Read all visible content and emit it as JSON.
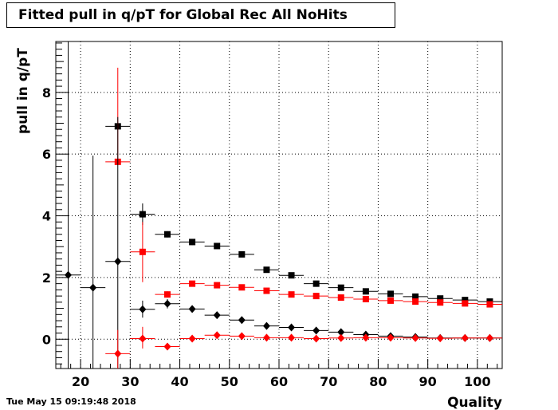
{
  "title": "Fitted pull in q/pT for Global Rec All NoHits",
  "timestamp": "Tue May 15 09:19:48 2018",
  "colors": {
    "black": "#000000",
    "red": "#ff0000"
  },
  "chart_data": {
    "type": "scatter",
    "title": "Fitted pull in q/pT for Global Rec All NoHits",
    "xlabel": "Quality",
    "ylabel": "pull in q/pT",
    "xlim": [
      15,
      105
    ],
    "ylim": [
      -0.95,
      9.65
    ],
    "xticks": [
      20,
      30,
      40,
      50,
      60,
      70,
      80,
      90,
      100
    ],
    "yticks": [
      0,
      2,
      4,
      6,
      8
    ],
    "grid": true,
    "legend": "none",
    "series": [
      {
        "color": "#000000",
        "marker": "square",
        "points": [
          {
            "x": 27.5,
            "y": 6.9,
            "ylo": 6.9,
            "yhi": 6.9
          },
          {
            "x": 32.5,
            "y": 4.05,
            "ylo": 3.7,
            "yhi": 4.4
          },
          {
            "x": 37.5,
            "y": 3.4,
            "ylo": 3.3,
            "yhi": 3.5
          },
          {
            "x": 42.5,
            "y": 3.15,
            "ylo": 3.05,
            "yhi": 3.25
          },
          {
            "x": 47.5,
            "y": 3.02,
            "ylo": 2.97,
            "yhi": 3.07
          },
          {
            "x": 52.5,
            "y": 2.75,
            "ylo": 2.72,
            "yhi": 2.78
          },
          {
            "x": 57.5,
            "y": 2.25,
            "ylo": 2.23,
            "yhi": 2.27
          },
          {
            "x": 62.5,
            "y": 2.07,
            "ylo": 2.05,
            "yhi": 2.09
          },
          {
            "x": 67.5,
            "y": 1.8,
            "ylo": 1.78,
            "yhi": 1.82
          },
          {
            "x": 72.5,
            "y": 1.67,
            "ylo": 1.65,
            "yhi": 1.69
          },
          {
            "x": 77.5,
            "y": 1.55,
            "ylo": 1.53,
            "yhi": 1.57
          },
          {
            "x": 82.5,
            "y": 1.47,
            "ylo": 1.45,
            "yhi": 1.49
          },
          {
            "x": 87.5,
            "y": 1.38,
            "ylo": 1.37,
            "yhi": 1.39
          },
          {
            "x": 92.5,
            "y": 1.32,
            "ylo": 1.31,
            "yhi": 1.33
          },
          {
            "x": 97.5,
            "y": 1.27,
            "ylo": 1.26,
            "yhi": 1.28
          },
          {
            "x": 102.5,
            "y": 1.22,
            "ylo": 1.21,
            "yhi": 1.23
          }
        ]
      },
      {
        "color": "#ff0000",
        "marker": "square",
        "points": [
          {
            "x": 27.5,
            "y": 5.75,
            "ylo": 5.75,
            "yhi": 8.8
          },
          {
            "x": 32.5,
            "y": 2.83,
            "ylo": 1.85,
            "yhi": 3.8
          },
          {
            "x": 37.5,
            "y": 1.45,
            "ylo": 1.35,
            "yhi": 1.55
          },
          {
            "x": 42.5,
            "y": 1.8,
            "ylo": 1.75,
            "yhi": 1.85
          },
          {
            "x": 47.5,
            "y": 1.75,
            "ylo": 1.72,
            "yhi": 1.78
          },
          {
            "x": 52.5,
            "y": 1.68,
            "ylo": 1.66,
            "yhi": 1.7
          },
          {
            "x": 57.5,
            "y": 1.57,
            "ylo": 1.55,
            "yhi": 1.59
          },
          {
            "x": 62.5,
            "y": 1.45,
            "ylo": 1.43,
            "yhi": 1.47
          },
          {
            "x": 67.5,
            "y": 1.4,
            "ylo": 1.38,
            "yhi": 1.42
          },
          {
            "x": 72.5,
            "y": 1.35,
            "ylo": 1.33,
            "yhi": 1.37
          },
          {
            "x": 77.5,
            "y": 1.3,
            "ylo": 1.29,
            "yhi": 1.31
          },
          {
            "x": 82.5,
            "y": 1.25,
            "ylo": 1.24,
            "yhi": 1.26
          },
          {
            "x": 87.5,
            "y": 1.22,
            "ylo": 1.21,
            "yhi": 1.23
          },
          {
            "x": 92.5,
            "y": 1.19,
            "ylo": 1.18,
            "yhi": 1.2
          },
          {
            "x": 97.5,
            "y": 1.16,
            "ylo": 1.15,
            "yhi": 1.17
          },
          {
            "x": 102.5,
            "y": 1.13,
            "ylo": 1.12,
            "yhi": 1.14
          }
        ]
      },
      {
        "color": "#000000",
        "marker": "diamond",
        "points": [
          {
            "x": 17.5,
            "y": 2.08,
            "ylo": -0.95,
            "yhi": 9.65
          },
          {
            "x": 22.5,
            "y": 1.67,
            "ylo": -0.95,
            "yhi": 5.95
          },
          {
            "x": 27.5,
            "y": 2.52,
            "ylo": -0.95,
            "yhi": 7.2
          },
          {
            "x": 32.5,
            "y": 0.97,
            "ylo": 0.7,
            "yhi": 1.25
          },
          {
            "x": 37.5,
            "y": 1.15,
            "ylo": 1.0,
            "yhi": 1.3
          },
          {
            "x": 42.5,
            "y": 0.98,
            "ylo": 0.9,
            "yhi": 1.06
          },
          {
            "x": 47.5,
            "y": 0.78,
            "ylo": 0.73,
            "yhi": 0.83
          },
          {
            "x": 52.5,
            "y": 0.62,
            "ylo": 0.59,
            "yhi": 0.65
          },
          {
            "x": 57.5,
            "y": 0.43,
            "ylo": 0.41,
            "yhi": 0.45
          },
          {
            "x": 62.5,
            "y": 0.38,
            "ylo": 0.36,
            "yhi": 0.4
          },
          {
            "x": 67.5,
            "y": 0.28,
            "ylo": 0.26,
            "yhi": 0.3
          },
          {
            "x": 72.5,
            "y": 0.23,
            "ylo": 0.21,
            "yhi": 0.25
          },
          {
            "x": 77.5,
            "y": 0.15,
            "ylo": 0.14,
            "yhi": 0.16
          },
          {
            "x": 82.5,
            "y": 0.1,
            "ylo": 0.09,
            "yhi": 0.11
          },
          {
            "x": 87.5,
            "y": 0.07,
            "ylo": 0.06,
            "yhi": 0.08
          },
          {
            "x": 92.5,
            "y": 0.04,
            "ylo": 0.03,
            "yhi": 0.05
          },
          {
            "x": 97.5,
            "y": 0.04,
            "ylo": 0.03,
            "yhi": 0.05
          },
          {
            "x": 102.5,
            "y": 0.04,
            "ylo": 0.03,
            "yhi": 0.05
          }
        ]
      },
      {
        "color": "#ff0000",
        "marker": "diamond",
        "points": [
          {
            "x": 27.5,
            "y": -0.47,
            "ylo": -0.95,
            "yhi": 0.3
          },
          {
            "x": 32.5,
            "y": 0.02,
            "ylo": -0.3,
            "yhi": 0.4
          },
          {
            "x": 37.5,
            "y": -0.24,
            "ylo": -0.28,
            "yhi": -0.2
          },
          {
            "x": 42.5,
            "y": 0.02,
            "ylo": -0.01,
            "yhi": 0.05
          },
          {
            "x": 47.5,
            "y": 0.13,
            "ylo": 0.11,
            "yhi": 0.15
          },
          {
            "x": 52.5,
            "y": 0.1,
            "ylo": 0.08,
            "yhi": 0.12
          },
          {
            "x": 57.5,
            "y": 0.05,
            "ylo": 0.04,
            "yhi": 0.06
          },
          {
            "x": 62.5,
            "y": 0.05,
            "ylo": 0.04,
            "yhi": 0.06
          },
          {
            "x": 67.5,
            "y": 0.02,
            "ylo": 0.01,
            "yhi": 0.03
          },
          {
            "x": 72.5,
            "y": 0.04,
            "ylo": 0.03,
            "yhi": 0.05
          },
          {
            "x": 77.5,
            "y": 0.05,
            "ylo": 0.04,
            "yhi": 0.06
          },
          {
            "x": 82.5,
            "y": 0.05,
            "ylo": 0.04,
            "yhi": 0.06
          },
          {
            "x": 87.5,
            "y": 0.04,
            "ylo": 0.03,
            "yhi": 0.05
          },
          {
            "x": 92.5,
            "y": 0.03,
            "ylo": 0.02,
            "yhi": 0.04
          },
          {
            "x": 97.5,
            "y": 0.04,
            "ylo": 0.03,
            "yhi": 0.05
          },
          {
            "x": 102.5,
            "y": 0.04,
            "ylo": 0.03,
            "yhi": 0.05
          }
        ]
      }
    ]
  }
}
